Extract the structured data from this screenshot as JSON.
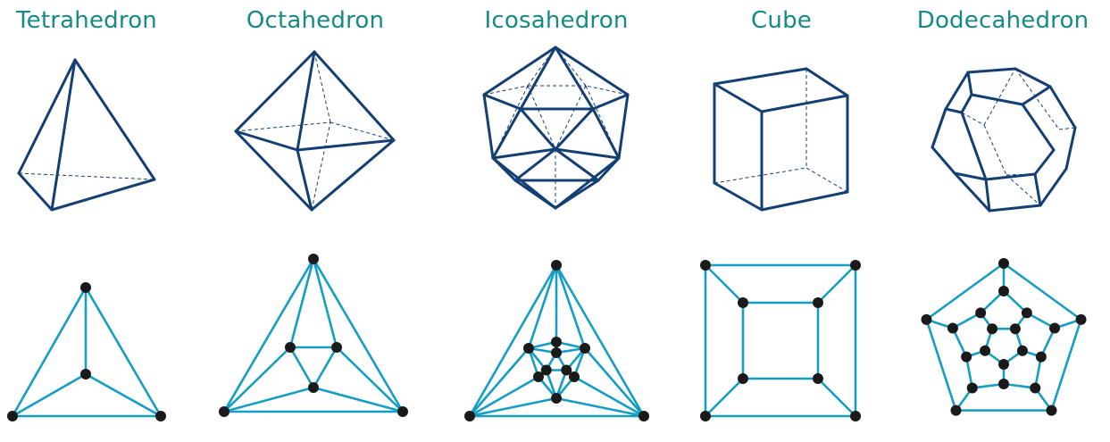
{
  "solids": [
    {
      "id": "tetrahedron",
      "name": "Tetrahedron"
    },
    {
      "id": "octahedron",
      "name": "Octahedron"
    },
    {
      "id": "icosahedron",
      "name": "Icosahedron"
    },
    {
      "id": "cube",
      "name": "Cube"
    },
    {
      "id": "dodecahedron",
      "name": "Dodecahedron"
    }
  ],
  "colors": {
    "title": "#168a86",
    "solid_edges": "#143f73",
    "graph_edges": "#159ec4",
    "graph_vertices": "#1a1a1a"
  }
}
